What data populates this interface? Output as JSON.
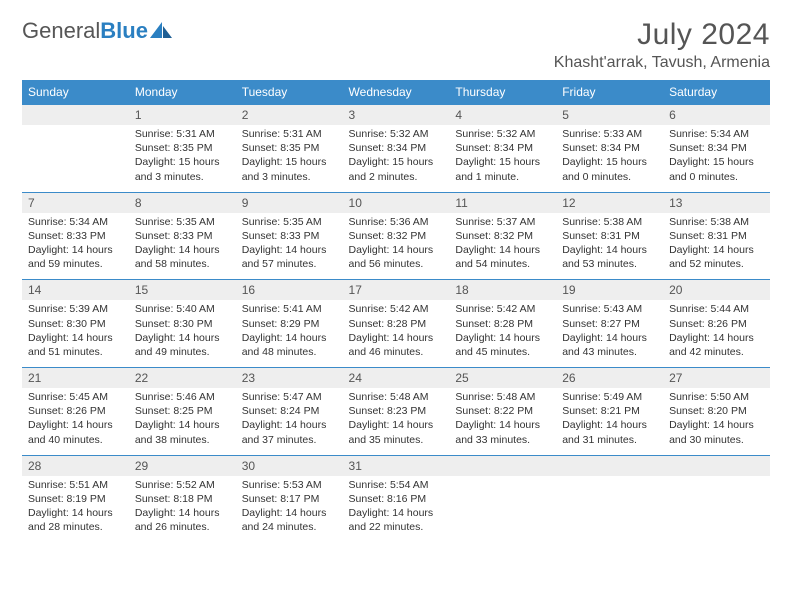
{
  "logo": {
    "text1": "General",
    "text2": "Blue"
  },
  "title": "July 2024",
  "location": "Khasht'arrak, Tavush, Armenia",
  "colors": {
    "header_bg": "#3b8bc9",
    "daynum_bg": "#eeeeee",
    "border": "#3b8bc9"
  },
  "weekdays": [
    "Sunday",
    "Monday",
    "Tuesday",
    "Wednesday",
    "Thursday",
    "Friday",
    "Saturday"
  ],
  "weeks": [
    [
      {
        "num": "",
        "lines": []
      },
      {
        "num": "1",
        "lines": [
          "Sunrise: 5:31 AM",
          "Sunset: 8:35 PM",
          "Daylight: 15 hours",
          "and 3 minutes."
        ]
      },
      {
        "num": "2",
        "lines": [
          "Sunrise: 5:31 AM",
          "Sunset: 8:35 PM",
          "Daylight: 15 hours",
          "and 3 minutes."
        ]
      },
      {
        "num": "3",
        "lines": [
          "Sunrise: 5:32 AM",
          "Sunset: 8:34 PM",
          "Daylight: 15 hours",
          "and 2 minutes."
        ]
      },
      {
        "num": "4",
        "lines": [
          "Sunrise: 5:32 AM",
          "Sunset: 8:34 PM",
          "Daylight: 15 hours",
          "and 1 minute."
        ]
      },
      {
        "num": "5",
        "lines": [
          "Sunrise: 5:33 AM",
          "Sunset: 8:34 PM",
          "Daylight: 15 hours",
          "and 0 minutes."
        ]
      },
      {
        "num": "6",
        "lines": [
          "Sunrise: 5:34 AM",
          "Sunset: 8:34 PM",
          "Daylight: 15 hours",
          "and 0 minutes."
        ]
      }
    ],
    [
      {
        "num": "7",
        "lines": [
          "Sunrise: 5:34 AM",
          "Sunset: 8:33 PM",
          "Daylight: 14 hours",
          "and 59 minutes."
        ]
      },
      {
        "num": "8",
        "lines": [
          "Sunrise: 5:35 AM",
          "Sunset: 8:33 PM",
          "Daylight: 14 hours",
          "and 58 minutes."
        ]
      },
      {
        "num": "9",
        "lines": [
          "Sunrise: 5:35 AM",
          "Sunset: 8:33 PM",
          "Daylight: 14 hours",
          "and 57 minutes."
        ]
      },
      {
        "num": "10",
        "lines": [
          "Sunrise: 5:36 AM",
          "Sunset: 8:32 PM",
          "Daylight: 14 hours",
          "and 56 minutes."
        ]
      },
      {
        "num": "11",
        "lines": [
          "Sunrise: 5:37 AM",
          "Sunset: 8:32 PM",
          "Daylight: 14 hours",
          "and 54 minutes."
        ]
      },
      {
        "num": "12",
        "lines": [
          "Sunrise: 5:38 AM",
          "Sunset: 8:31 PM",
          "Daylight: 14 hours",
          "and 53 minutes."
        ]
      },
      {
        "num": "13",
        "lines": [
          "Sunrise: 5:38 AM",
          "Sunset: 8:31 PM",
          "Daylight: 14 hours",
          "and 52 minutes."
        ]
      }
    ],
    [
      {
        "num": "14",
        "lines": [
          "Sunrise: 5:39 AM",
          "Sunset: 8:30 PM",
          "Daylight: 14 hours",
          "and 51 minutes."
        ]
      },
      {
        "num": "15",
        "lines": [
          "Sunrise: 5:40 AM",
          "Sunset: 8:30 PM",
          "Daylight: 14 hours",
          "and 49 minutes."
        ]
      },
      {
        "num": "16",
        "lines": [
          "Sunrise: 5:41 AM",
          "Sunset: 8:29 PM",
          "Daylight: 14 hours",
          "and 48 minutes."
        ]
      },
      {
        "num": "17",
        "lines": [
          "Sunrise: 5:42 AM",
          "Sunset: 8:28 PM",
          "Daylight: 14 hours",
          "and 46 minutes."
        ]
      },
      {
        "num": "18",
        "lines": [
          "Sunrise: 5:42 AM",
          "Sunset: 8:28 PM",
          "Daylight: 14 hours",
          "and 45 minutes."
        ]
      },
      {
        "num": "19",
        "lines": [
          "Sunrise: 5:43 AM",
          "Sunset: 8:27 PM",
          "Daylight: 14 hours",
          "and 43 minutes."
        ]
      },
      {
        "num": "20",
        "lines": [
          "Sunrise: 5:44 AM",
          "Sunset: 8:26 PM",
          "Daylight: 14 hours",
          "and 42 minutes."
        ]
      }
    ],
    [
      {
        "num": "21",
        "lines": [
          "Sunrise: 5:45 AM",
          "Sunset: 8:26 PM",
          "Daylight: 14 hours",
          "and 40 minutes."
        ]
      },
      {
        "num": "22",
        "lines": [
          "Sunrise: 5:46 AM",
          "Sunset: 8:25 PM",
          "Daylight: 14 hours",
          "and 38 minutes."
        ]
      },
      {
        "num": "23",
        "lines": [
          "Sunrise: 5:47 AM",
          "Sunset: 8:24 PM",
          "Daylight: 14 hours",
          "and 37 minutes."
        ]
      },
      {
        "num": "24",
        "lines": [
          "Sunrise: 5:48 AM",
          "Sunset: 8:23 PM",
          "Daylight: 14 hours",
          "and 35 minutes."
        ]
      },
      {
        "num": "25",
        "lines": [
          "Sunrise: 5:48 AM",
          "Sunset: 8:22 PM",
          "Daylight: 14 hours",
          "and 33 minutes."
        ]
      },
      {
        "num": "26",
        "lines": [
          "Sunrise: 5:49 AM",
          "Sunset: 8:21 PM",
          "Daylight: 14 hours",
          "and 31 minutes."
        ]
      },
      {
        "num": "27",
        "lines": [
          "Sunrise: 5:50 AM",
          "Sunset: 8:20 PM",
          "Daylight: 14 hours",
          "and 30 minutes."
        ]
      }
    ],
    [
      {
        "num": "28",
        "lines": [
          "Sunrise: 5:51 AM",
          "Sunset: 8:19 PM",
          "Daylight: 14 hours",
          "and 28 minutes."
        ]
      },
      {
        "num": "29",
        "lines": [
          "Sunrise: 5:52 AM",
          "Sunset: 8:18 PM",
          "Daylight: 14 hours",
          "and 26 minutes."
        ]
      },
      {
        "num": "30",
        "lines": [
          "Sunrise: 5:53 AM",
          "Sunset: 8:17 PM",
          "Daylight: 14 hours",
          "and 24 minutes."
        ]
      },
      {
        "num": "31",
        "lines": [
          "Sunrise: 5:54 AM",
          "Sunset: 8:16 PM",
          "Daylight: 14 hours",
          "and 22 minutes."
        ]
      },
      {
        "num": "",
        "lines": []
      },
      {
        "num": "",
        "lines": []
      },
      {
        "num": "",
        "lines": []
      }
    ]
  ]
}
